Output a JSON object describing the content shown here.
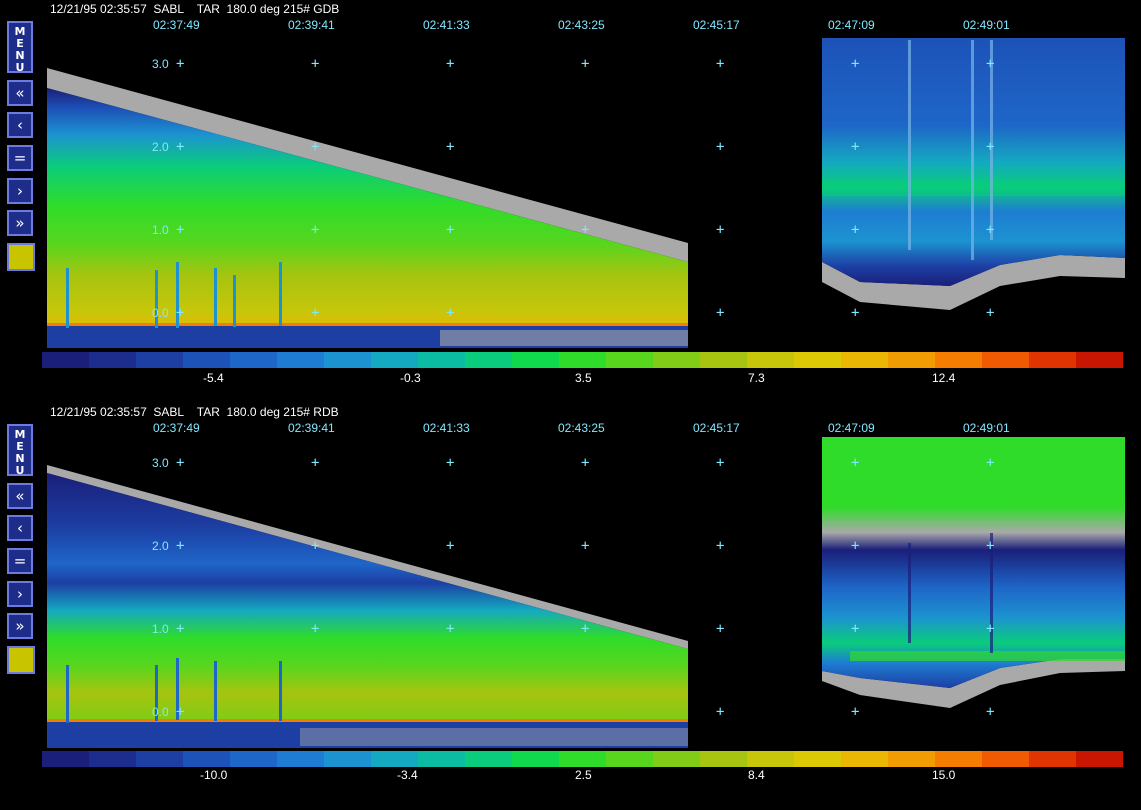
{
  "panels": [
    {
      "header": "12/21/95 02:35:57  SABL    TAR  180.0 deg 215# GDB",
      "time_ticks": [
        "02:37:49",
        "02:39:41",
        "02:41:33",
        "02:43:25",
        "02:45:17",
        "02:47:09",
        "02:49:01"
      ],
      "height_labels": [
        "3.0",
        "2.0",
        "1.0",
        "0.0"
      ],
      "colorbar_labels": [
        "-5.4",
        "-0.3",
        "3.5",
        "7.3",
        "12.4"
      ]
    },
    {
      "header": "12/21/95 02:35:57  SABL    TAR  180.0 deg 215# RDB",
      "time_ticks": [
        "02:37:49",
        "02:39:41",
        "02:41:33",
        "02:43:25",
        "02:45:17",
        "02:47:09",
        "02:49:01"
      ],
      "height_labels": [
        "3.0",
        "2.0",
        "1.0",
        "0.0"
      ],
      "colorbar_labels": [
        "-10.0",
        "-3.4",
        "2.5",
        "8.4",
        "15.0"
      ]
    }
  ],
  "sidebar": {
    "menu_label": "M\nE\nN\nU",
    "buttons": [
      "«",
      "‹",
      "=",
      "›",
      "»"
    ],
    "button_names": [
      "rewind-fast-button",
      "step-back-button",
      "equal-button",
      "step-forward-button",
      "forward-fast-button"
    ]
  },
  "colors": {
    "colorbar": [
      "#1a1f7a",
      "#1c2d8e",
      "#1d3fa4",
      "#1d52b8",
      "#1e66c8",
      "#1e7dd2",
      "#1c93d0",
      "#14a9c0",
      "#0cbca2",
      "#0acc7c",
      "#11d94e",
      "#2fdc2a",
      "#58d61e",
      "#80cc16",
      "#a6c410",
      "#c7c60a",
      "#ddc806",
      "#eab804",
      "#f29c03",
      "#f57d02",
      "#ef5a02",
      "#e03502",
      "#c91602"
    ],
    "plot_gray": "#a9a9a9",
    "label_cyan": "#7fe8ff",
    "swatch_yellow": "#c9c400"
  }
}
